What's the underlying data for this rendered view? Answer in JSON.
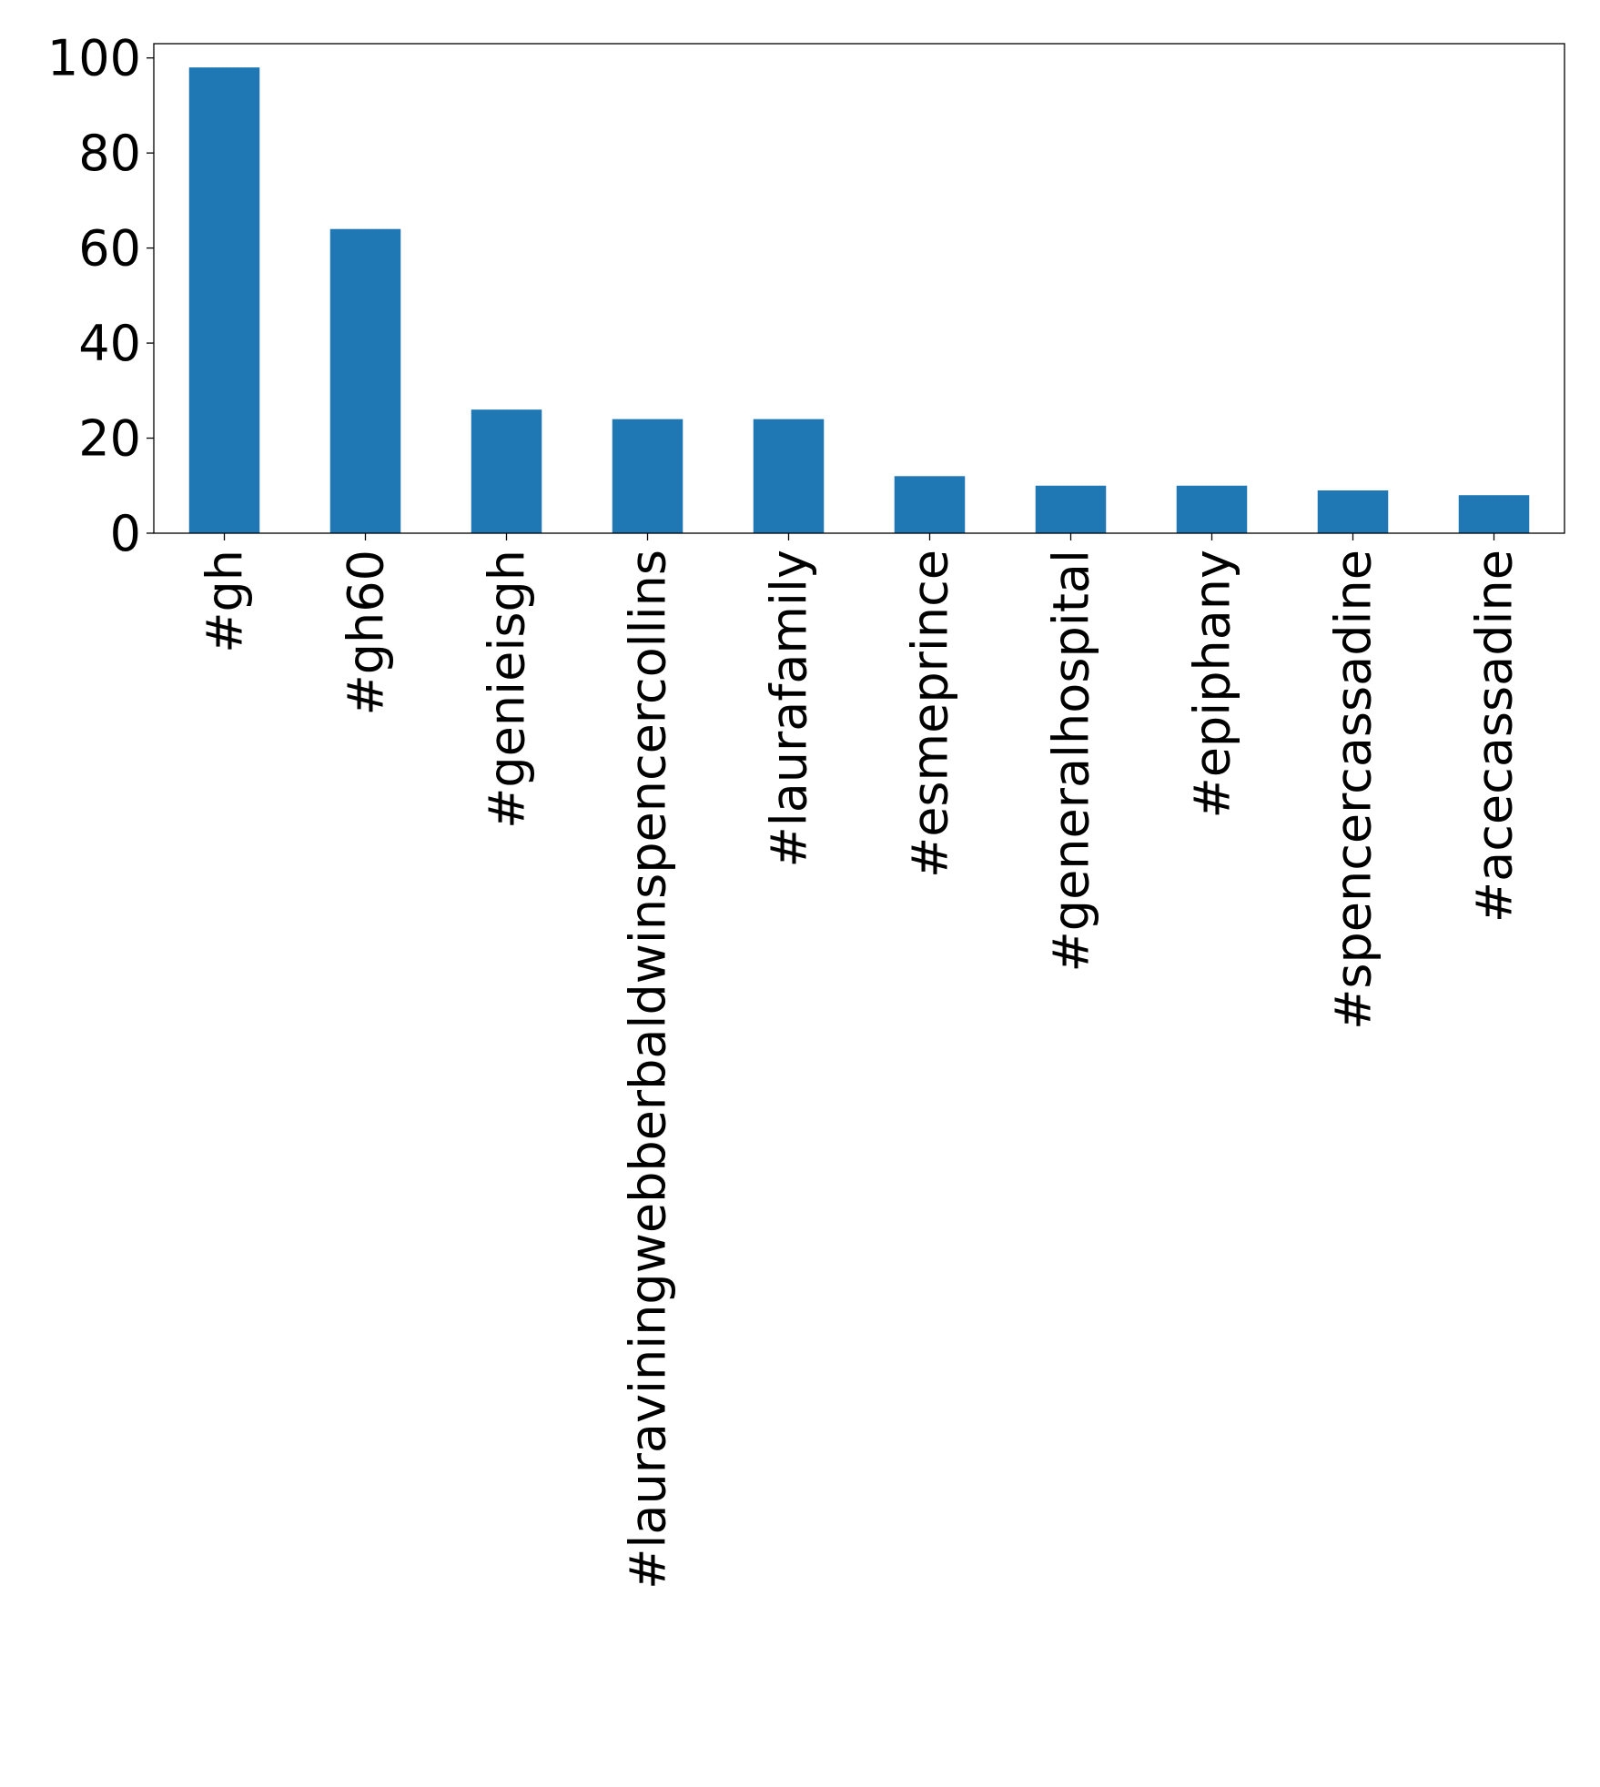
{
  "chart_data": {
    "type": "bar",
    "title": "",
    "xlabel": "",
    "ylabel": "",
    "categories": [
      "#gh",
      "#gh60",
      "#genieisgh",
      "#lauraviningwebberbaldwinspencercollins",
      "#laurafamily",
      "#esmeprince",
      "#generalhospital",
      "#epiphany",
      "#spencercassadine",
      "#acecassadine"
    ],
    "values": [
      98,
      64,
      26,
      24,
      24,
      12,
      10,
      10,
      9,
      8
    ],
    "ylim": [
      0,
      103
    ],
    "yticks": [
      0,
      20,
      40,
      60,
      80,
      100
    ],
    "grid": false,
    "legend": "none",
    "bar_color": "#1f77b4"
  }
}
